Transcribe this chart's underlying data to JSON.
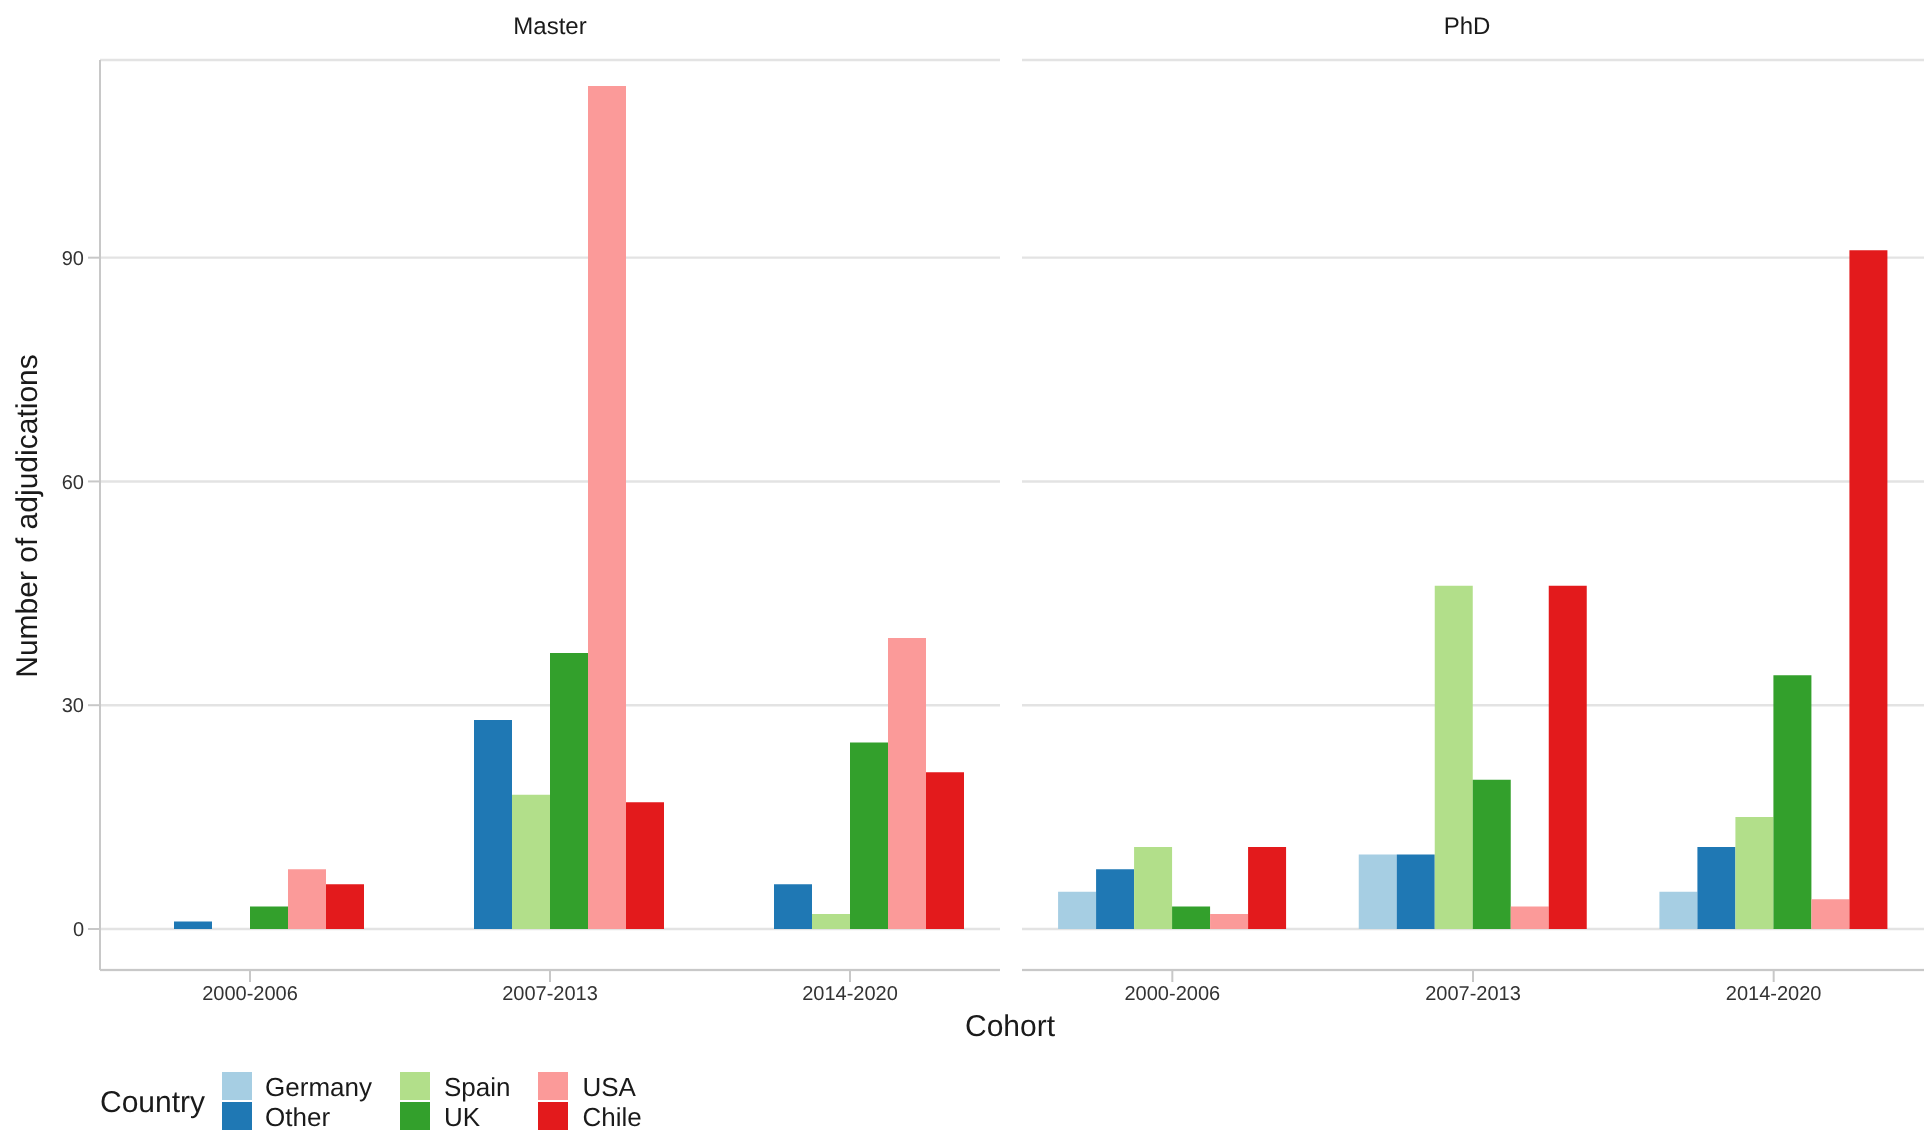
{
  "chart_data": [
    {
      "type": "bar",
      "title": "Master",
      "xlabel": "Cohort",
      "ylabel": "Number of adjudications",
      "legend_title": "Country",
      "legend": "bottom left",
      "grid": "y",
      "categories": [
        "2000-2006",
        "2007-2013",
        "2014-2020"
      ],
      "ylim": [
        -5.5,
        116.5
      ],
      "yticks": [
        0,
        30,
        60,
        90
      ],
      "series": [
        {
          "name": "Germany",
          "color": "#a6cee3",
          "values": [
            null,
            null,
            null
          ]
        },
        {
          "name": "Other",
          "color": "#1f78b4",
          "values": [
            1,
            28,
            6
          ]
        },
        {
          "name": "Spain",
          "color": "#b2df8a",
          "values": [
            null,
            18,
            2
          ]
        },
        {
          "name": "UK",
          "color": "#33a02c",
          "values": [
            3,
            37,
            25
          ]
        },
        {
          "name": "USA",
          "color": "#fb9a99",
          "values": [
            8,
            113,
            39
          ]
        },
        {
          "name": "Chile",
          "color": "#e31a1c",
          "values": [
            6,
            17,
            21
          ]
        }
      ]
    },
    {
      "type": "bar",
      "title": "PhD",
      "grid": "y",
      "tick_labels": "x",
      "categories": [
        "2000-2006",
        "2007-2013",
        "2014-2020"
      ],
      "ylim": [
        -5.5,
        116.5
      ],
      "yticks": [
        0,
        30,
        60,
        90
      ],
      "series": [
        {
          "color": "#a6cee3",
          "values": [
            5,
            10,
            5
          ]
        },
        {
          "color": "#1f78b4",
          "values": [
            8,
            10,
            11
          ]
        },
        {
          "color": "#b2df8a",
          "values": [
            11,
            46,
            15
          ]
        },
        {
          "color": "#33a02c",
          "values": [
            3,
            20,
            34
          ]
        },
        {
          "color": "#fb9a99",
          "values": [
            2,
            3,
            4
          ]
        },
        {
          "color": "#e31a1c",
          "values": [
            11,
            46,
            91
          ]
        }
      ]
    }
  ]
}
